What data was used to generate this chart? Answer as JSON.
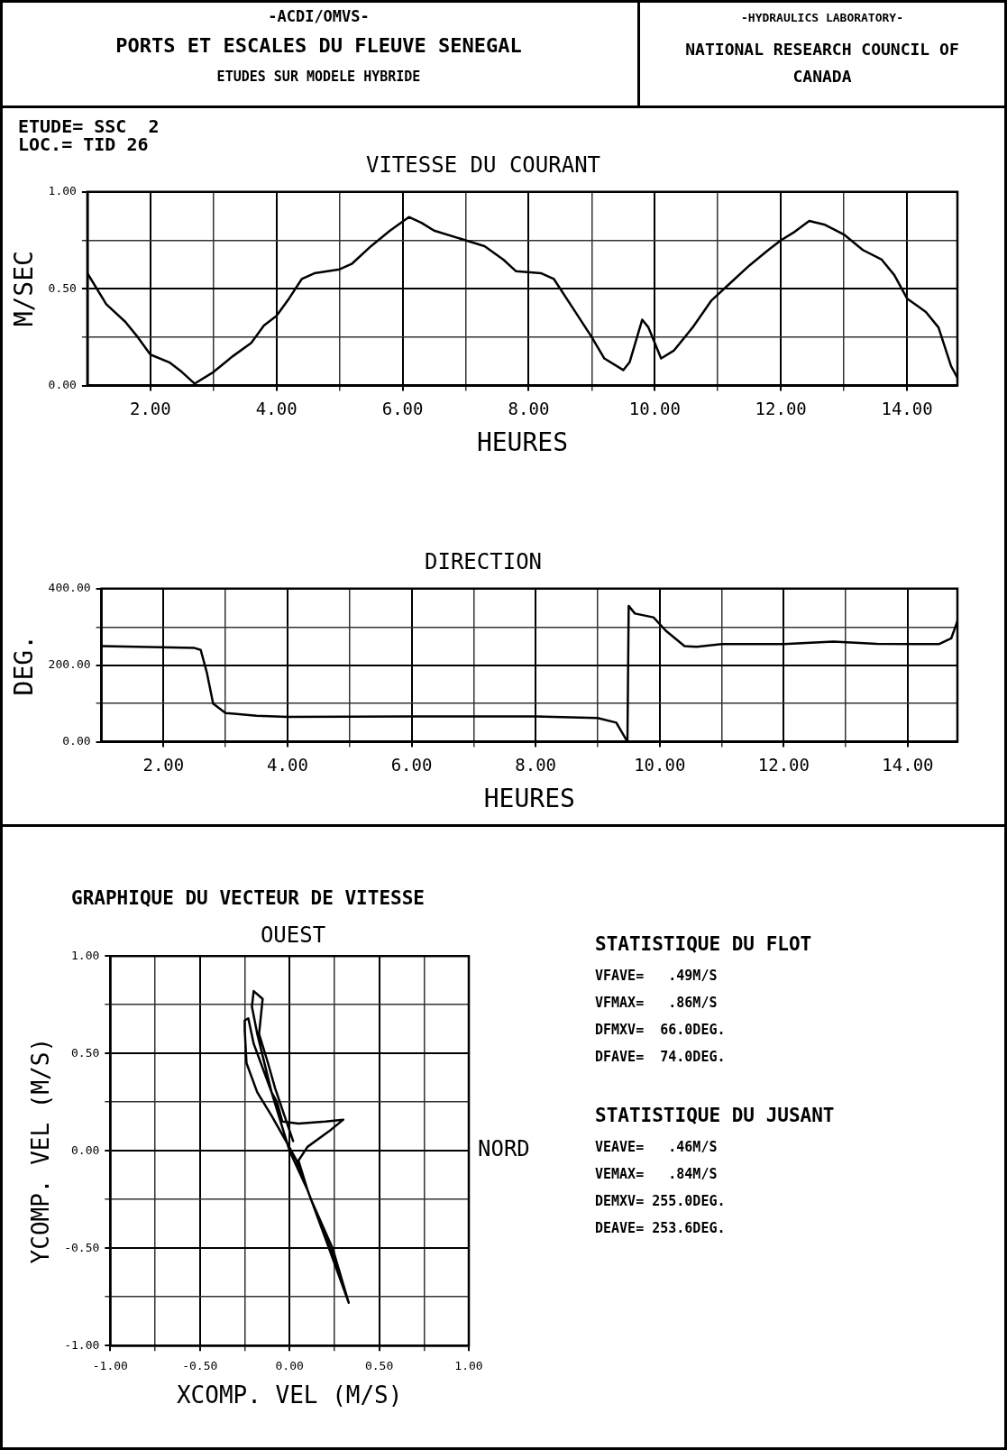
{
  "chart_data": [
    {
      "type": "other",
      "title": "PORTS ET ESCALES DU FLEUVE SENEGAL",
      "subtitle": "ETUDES SUR MODELE HYBRIDE",
      "annotations": [
        "-ACDI/OMVS-",
        "-HYDRAULICS LABORATORY-",
        "NATIONAL RESEARCH COUNCIL OF CANADA"
      ]
    },
    {
      "type": "line",
      "title": "VITESSE DU COURANT",
      "xlabel": "HEURES",
      "ylabel": "M/SEC",
      "annotations": [
        "ETUDE= SSC  2",
        "LOC.= TID 26"
      ],
      "grid": true,
      "xlim": [
        1,
        14.8
      ],
      "xticks": [
        {
          "value": 2,
          "label": "2.00"
        },
        {
          "value": 3,
          "label": null
        },
        {
          "value": 4,
          "label": "4.00"
        },
        {
          "value": 5,
          "label": null
        },
        {
          "value": 6,
          "label": "6.00"
        },
        {
          "value": 7,
          "label": null
        },
        {
          "value": 8,
          "label": "8.00"
        },
        {
          "value": 9,
          "label": null
        },
        {
          "value": 10,
          "label": "10.00"
        },
        {
          "value": 11,
          "label": null
        },
        {
          "value": 12,
          "label": "12.00"
        },
        {
          "value": 13,
          "label": null
        },
        {
          "value": 14,
          "label": "14.00"
        }
      ],
      "ylim": [
        0,
        1
      ],
      "yticks": [
        {
          "value": 0,
          "label": "0.00"
        },
        {
          "value": 0.25,
          "label": null
        },
        {
          "value": 0.5,
          "label": "0.50"
        },
        {
          "value": 0.75,
          "label": null
        },
        {
          "value": 1,
          "label": "1.00"
        }
      ],
      "x": [
        1.0,
        1.3,
        1.6,
        1.8,
        2.0,
        2.3,
        2.5,
        2.7,
        3.0,
        3.3,
        3.6,
        3.8,
        4.0,
        4.2,
        4.4,
        4.6,
        5.0,
        5.2,
        5.5,
        5.8,
        6.1,
        6.3,
        6.5,
        7.0,
        7.3,
        7.6,
        7.8,
        8.2,
        8.4,
        8.7,
        9.0,
        9.2,
        9.5,
        9.6,
        9.8,
        9.9,
        10.1,
        10.3,
        10.6,
        10.9,
        11.2,
        11.5,
        11.8,
        12.0,
        12.2,
        12.45,
        12.7,
        13.0,
        13.3,
        13.6,
        13.8,
        14.0,
        14.3,
        14.5,
        14.7,
        14.8
      ],
      "series": [
        {
          "color": "#000000",
          "values": [
            0.58,
            0.42,
            0.33,
            0.25,
            0.16,
            0.12,
            0.07,
            0.01,
            0.07,
            0.15,
            0.22,
            0.31,
            0.36,
            0.45,
            0.55,
            0.58,
            0.6,
            0.63,
            0.72,
            0.8,
            0.87,
            0.84,
            0.8,
            0.75,
            0.72,
            0.65,
            0.59,
            0.58,
            0.55,
            0.4,
            0.25,
            0.14,
            0.08,
            0.12,
            0.34,
            0.3,
            0.14,
            0.18,
            0.3,
            0.44,
            0.53,
            0.62,
            0.7,
            0.75,
            0.79,
            0.85,
            0.83,
            0.78,
            0.7,
            0.65,
            0.57,
            0.45,
            0.38,
            0.3,
            0.1,
            0.04
          ]
        }
      ]
    },
    {
      "type": "line",
      "title": "DIRECTION",
      "xlabel": "HEURES",
      "ylabel": "DEG.",
      "grid": true,
      "xlim": [
        1,
        14.8
      ],
      "xticks": [
        {
          "value": 2,
          "label": "2.00"
        },
        {
          "value": 3,
          "label": null
        },
        {
          "value": 4,
          "label": "4.00"
        },
        {
          "value": 5,
          "label": null
        },
        {
          "value": 6,
          "label": "6.00"
        },
        {
          "value": 7,
          "label": null
        },
        {
          "value": 8,
          "label": "8.00"
        },
        {
          "value": 9,
          "label": null
        },
        {
          "value": 10,
          "label": "10.00"
        },
        {
          "value": 11,
          "label": null
        },
        {
          "value": 12,
          "label": "12.00"
        },
        {
          "value": 13,
          "label": null
        },
        {
          "value": 14,
          "label": "14.00"
        }
      ],
      "ylim": [
        0,
        400
      ],
      "yticks": [
        {
          "value": 0,
          "label": "0.00"
        },
        {
          "value": 100,
          "label": null
        },
        {
          "value": 200,
          "label": "200.00"
        },
        {
          "value": 300,
          "label": null
        },
        {
          "value": 400,
          "label": "400.00"
        }
      ],
      "x": [
        1.0,
        2.5,
        2.6,
        2.7,
        2.8,
        3.0,
        3.5,
        4.0,
        6.0,
        8.0,
        9.0,
        9.3,
        9.48,
        9.5,
        9.6,
        9.9,
        10.1,
        10.4,
        10.6,
        11.0,
        12.0,
        12.8,
        13.5,
        14.5,
        14.7,
        14.8
      ],
      "series": [
        {
          "color": "#000000",
          "values": [
            250,
            245,
            240,
            180,
            100,
            75,
            68,
            65,
            66,
            66,
            62,
            50,
            0,
            355,
            335,
            325,
            290,
            250,
            248,
            255,
            255,
            262,
            256,
            255,
            270,
            315
          ]
        }
      ]
    },
    {
      "type": "line",
      "title": "GRAPHIQUE DU VECTEUR DE VITESSE",
      "xlabel": "XCOMP. VEL (M/S)",
      "ylabel": "YCOMP. VEL (M/S)",
      "annotations": [
        "OUEST",
        "NORD"
      ],
      "grid": true,
      "xlim": [
        -1,
        1
      ],
      "xticks": [
        {
          "value": -1,
          "label": "-1.00"
        },
        {
          "value": -0.75,
          "label": null
        },
        {
          "value": -0.5,
          "label": "-0.50"
        },
        {
          "value": -0.25,
          "label": null
        },
        {
          "value": 0,
          "label": "0.00"
        },
        {
          "value": 0.25,
          "label": null
        },
        {
          "value": 0.5,
          "label": "0.50"
        },
        {
          "value": 0.75,
          "label": null
        },
        {
          "value": 1,
          "label": "1.00"
        }
      ],
      "ylim": [
        -1,
        1
      ],
      "yticks": [
        {
          "value": -1,
          "label": "-1.00"
        },
        {
          "value": -0.75,
          "label": null
        },
        {
          "value": -0.5,
          "label": "-0.50"
        },
        {
          "value": -0.25,
          "label": null
        },
        {
          "value": 0,
          "label": "0.00"
        },
        {
          "value": 0.25,
          "label": null
        },
        {
          "value": 0.5,
          "label": "0.50"
        },
        {
          "value": 0.75,
          "label": null
        },
        {
          "value": 1,
          "label": "1.00"
        }
      ],
      "x": [
        0.33,
        0.24,
        0.12,
        0.04,
        -0.02,
        -0.1,
        -0.18,
        -0.24,
        -0.25,
        -0.25,
        -0.23,
        -0.2,
        -0.14,
        -0.1,
        -0.07,
        -0.04,
        0.05,
        0.2,
        0.3,
        0.22,
        0.1,
        0.05,
        0.1,
        0.18,
        0.27,
        0.33,
        0.2,
        0.1,
        0.0,
        -0.1,
        -0.18,
        -0.21,
        -0.2,
        -0.15,
        -0.17,
        -0.12,
        -0.08,
        0.02
      ],
      "series": [
        {
          "color": "#000000",
          "values": [
            -0.78,
            -0.5,
            -0.25,
            -0.05,
            0.05,
            0.18,
            0.3,
            0.45,
            0.62,
            0.67,
            0.68,
            0.55,
            0.4,
            0.3,
            0.25,
            0.15,
            0.14,
            0.15,
            0.16,
            0.1,
            0.02,
            -0.05,
            -0.2,
            -0.4,
            -0.6,
            -0.78,
            -0.45,
            -0.2,
            0.0,
            0.3,
            0.6,
            0.74,
            0.82,
            0.78,
            0.6,
            0.45,
            0.32,
            0.05
          ]
        }
      ]
    },
    {
      "type": "other",
      "title": "STATISTIQUE DU FLOT",
      "annotations": [
        "VFAVE=   .49M/S",
        "VFMAX=   .86M/S",
        "DFMXV=  66.0DEG.",
        "DFAVE=  74.0DEG."
      ]
    },
    {
      "type": "other",
      "title": "STATISTIQUE DU JUSANT",
      "annotations": [
        "VEAVE=   .46M/S",
        "VEMAX=   .84M/S",
        "DEMXV= 255.0DEG.",
        "DEAVE= 253.6DEG."
      ]
    }
  ]
}
